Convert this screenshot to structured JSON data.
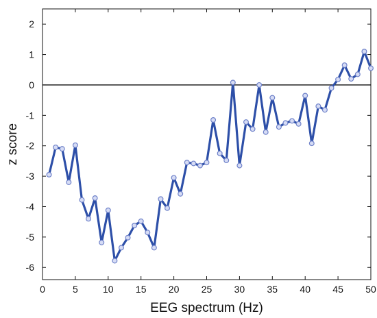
{
  "chart_data": {
    "type": "line",
    "title": "",
    "xlabel": "EEG spectrum (Hz)",
    "ylabel": "z score",
    "xlim": [
      0,
      50
    ],
    "ylim": [
      -6.4,
      2.5
    ],
    "xticks": [
      0,
      5,
      10,
      15,
      20,
      25,
      30,
      35,
      40,
      45,
      50
    ],
    "yticks": [
      2,
      1,
      0,
      -1,
      -2,
      -3,
      -4,
      -5,
      -6
    ],
    "grid": false,
    "legend": "none",
    "reference_line": {
      "y": 0
    },
    "series": [
      {
        "x": [
          1,
          2,
          3,
          4,
          5,
          6,
          7,
          8,
          9,
          10,
          11,
          12,
          13,
          14,
          15,
          16,
          17,
          18,
          19,
          20,
          21,
          22,
          23,
          24,
          25,
          26,
          27,
          28,
          29,
          30,
          31,
          32,
          33,
          34,
          35,
          36,
          37,
          38,
          39,
          40,
          41,
          42,
          43,
          44,
          45,
          46,
          47,
          48,
          49,
          50
        ],
        "values": [
          -2.95,
          -2.05,
          -2.1,
          -3.2,
          -1.98,
          -3.78,
          -4.4,
          -3.72,
          -5.18,
          -4.12,
          -5.78,
          -5.35,
          -5.02,
          -4.62,
          -4.48,
          -4.85,
          -5.35,
          -3.75,
          -4.05,
          -3.05,
          -3.58,
          -2.55,
          -2.58,
          -2.65,
          -2.55,
          -1.15,
          -2.25,
          -2.48,
          0.08,
          -2.65,
          -1.22,
          -1.45,
          0.0,
          -1.55,
          -0.42,
          -1.38,
          -1.25,
          -1.18,
          -1.28,
          -0.35,
          -1.92,
          -0.7,
          -0.82,
          -0.1,
          0.18,
          0.65,
          0.2,
          0.35,
          1.1,
          0.55
        ]
      }
    ],
    "colors": {
      "line": "#2d4fa8",
      "marker_fill": "#d6dcf5",
      "marker_stroke": "#6f82c9",
      "axis": "#111111",
      "zero_line": "#111111"
    }
  }
}
